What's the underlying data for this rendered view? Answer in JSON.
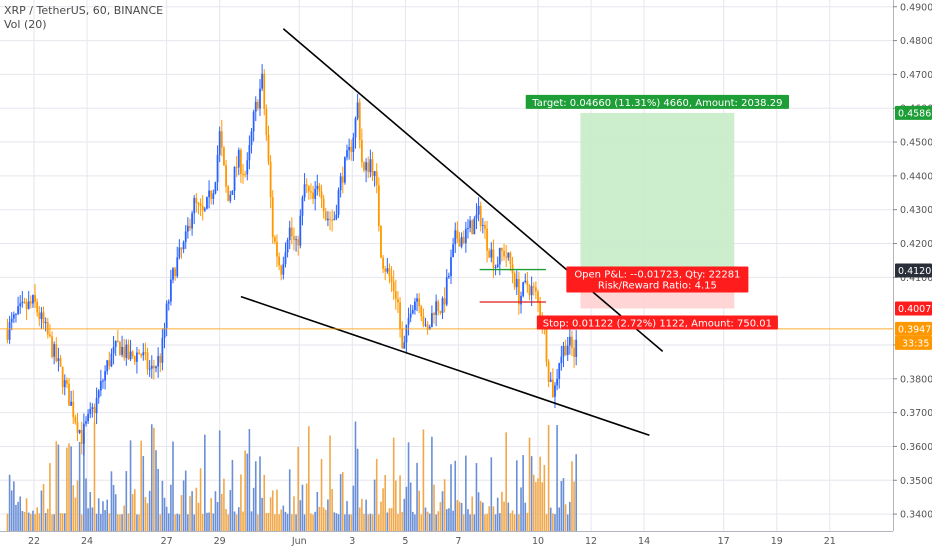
{
  "chart_data": {
    "type": "candlestick",
    "title": "XRP / TetherUS, 60, BINANCE",
    "indicator": "Vol (20)",
    "yrange": [
      0.335,
      0.492
    ],
    "yticks": [
      0.49,
      0.48,
      0.47,
      0.46,
      0.45,
      0.44,
      0.43,
      0.42,
      0.41,
      0.39,
      0.38,
      0.37,
      0.36,
      0.35,
      0.34
    ],
    "ytick_labels": [
      "0.49000",
      "0.48000",
      "0.47000",
      "0.46000",
      "0.45000",
      "0.44000",
      "0.43000",
      "0.42000",
      "0.41000",
      "0.39000",
      "0.38000",
      "0.37000",
      "0.36000",
      "0.35000",
      "0.34000"
    ],
    "xticks": [
      {
        "label": "22",
        "day": 22
      },
      {
        "label": "24",
        "day": 24
      },
      {
        "label": "27",
        "day": 27
      },
      {
        "label": "29",
        "day": 29
      },
      {
        "label": "Jun",
        "day": 32
      },
      {
        "label": "3",
        "day": 34
      },
      {
        "label": "5",
        "day": 36
      },
      {
        "label": "7",
        "day": 38
      },
      {
        "label": "10",
        "day": 41
      },
      {
        "label": "12",
        "day": 43
      },
      {
        "label": "14",
        "day": 45
      },
      {
        "label": "17",
        "day": 48
      },
      {
        "label": "19",
        "day": 50
      },
      {
        "label": "21",
        "day": 52
      }
    ],
    "keypoints": [
      [
        21.0,
        0.3945
      ],
      [
        21.5,
        0.4
      ],
      [
        22.0,
        0.4025
      ],
      [
        22.5,
        0.393
      ],
      [
        23.0,
        0.382
      ],
      [
        23.5,
        0.37
      ],
      [
        23.8,
        0.363
      ],
      [
        24.3,
        0.372
      ],
      [
        24.8,
        0.385
      ],
      [
        25.2,
        0.39
      ],
      [
        25.6,
        0.386
      ],
      [
        26.0,
        0.388
      ],
      [
        26.4,
        0.382
      ],
      [
        26.8,
        0.387
      ],
      [
        27.0,
        0.4
      ],
      [
        27.3,
        0.413
      ],
      [
        27.7,
        0.42
      ],
      [
        28.0,
        0.432
      ],
      [
        28.4,
        0.428
      ],
      [
        28.8,
        0.438
      ],
      [
        29.0,
        0.452
      ],
      [
        29.3,
        0.432
      ],
      [
        29.7,
        0.445
      ],
      [
        30.0,
        0.44
      ],
      [
        30.3,
        0.458
      ],
      [
        30.6,
        0.468
      ],
      [
        30.8,
        0.448
      ],
      [
        31.0,
        0.423
      ],
      [
        31.3,
        0.412
      ],
      [
        31.6,
        0.425
      ],
      [
        31.9,
        0.418
      ],
      [
        32.2,
        0.437
      ],
      [
        32.5,
        0.432
      ],
      [
        32.8,
        0.438
      ],
      [
        33.0,
        0.428
      ],
      [
        33.3,
        0.427
      ],
      [
        33.6,
        0.44
      ],
      [
        33.9,
        0.447
      ],
      [
        34.1,
        0.455
      ],
      [
        34.2,
        0.461
      ],
      [
        34.4,
        0.44
      ],
      [
        34.7,
        0.445
      ],
      [
        34.9,
        0.437
      ],
      [
        35.1,
        0.416
      ],
      [
        35.4,
        0.41
      ],
      [
        35.7,
        0.404
      ],
      [
        35.9,
        0.386
      ],
      [
        36.2,
        0.402
      ],
      [
        36.5,
        0.405
      ],
      [
        36.8,
        0.392
      ],
      [
        37.1,
        0.402
      ],
      [
        37.4,
        0.401
      ],
      [
        37.6,
        0.409
      ],
      [
        37.9,
        0.422
      ],
      [
        38.2,
        0.422
      ],
      [
        38.5,
        0.425
      ],
      [
        38.8,
        0.429
      ],
      [
        39.1,
        0.42
      ],
      [
        39.4,
        0.414
      ],
      [
        39.7,
        0.418
      ],
      [
        40.0,
        0.413
      ],
      [
        40.3,
        0.404
      ],
      [
        40.6,
        0.408
      ],
      [
        40.9,
        0.405
      ],
      [
        41.2,
        0.397
      ],
      [
        41.4,
        0.382
      ],
      [
        41.6,
        0.375
      ],
      [
        41.8,
        0.386
      ],
      [
        42.1,
        0.391
      ],
      [
        42.4,
        0.387
      ],
      [
        42.5,
        0.39478
      ]
    ],
    "volume_scale_max": 1.0,
    "trendlines": [
      {
        "name": "upper",
        "from": [
          31.4,
          0.4835
        ],
        "to": [
          45.7,
          0.3881
        ]
      },
      {
        "name": "lower",
        "from": [
          29.8,
          0.4043
        ],
        "to": [
          45.2,
          0.3633
        ]
      }
    ],
    "position": {
      "day_start": 42.6,
      "day_end": 48.4,
      "entry": 0.41201,
      "target": 0.45861,
      "stop": 0.40079,
      "labels": {
        "target": "Target: 0.04660 (11.31%) 4660, Amount: 2038.29",
        "pnl": "Open P&L: --0.01723, Qty: 22281",
        "rr": "Risk/Reward Ratio: 4.15",
        "stop": "Stop: 0.01122 (2.72%) 1122, Amount: 750.01"
      }
    },
    "levels": [
      {
        "name": "green",
        "day_start": 38.8,
        "day_end": 41.3,
        "price": 0.4123
      },
      {
        "name": "red",
        "day_start": 38.8,
        "day_end": 41.3,
        "price": 0.4027
      }
    ],
    "price_tags": [
      {
        "label": "0.45861",
        "price": 0.45861,
        "color": "#1e9e37",
        "text": "#ffffff"
      },
      {
        "label": "0.41201",
        "price": 0.41201,
        "color": "#2a2e39",
        "text": "#ffffff"
      },
      {
        "label": "0.40079",
        "price": 0.40079,
        "color": "#ff1c1c",
        "text": "#ffffff"
      },
      {
        "label": "0.39478",
        "price": 0.39478,
        "color": "#ff9800",
        "text": "#ffffff"
      }
    ],
    "countdown": "33:35",
    "last_price": 0.39478,
    "colors": {
      "up": "#2962ff",
      "down": "#ff9800",
      "volume_up": "#6a8fd6",
      "volume_down": "#f0a84a",
      "trendline": "#000000",
      "target_zone": "#c8ecc8",
      "stop_zone": "#ffd0d0",
      "grid": "#e6e6ee"
    }
  }
}
